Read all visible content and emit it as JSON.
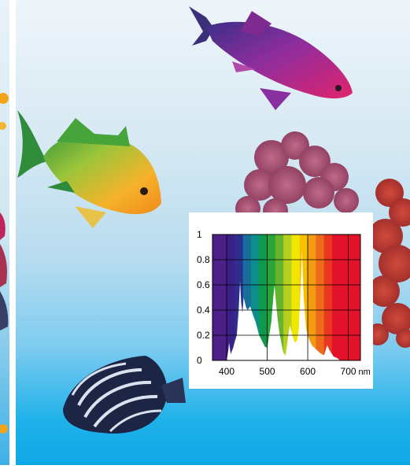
{
  "chart_data": {
    "type": "area",
    "title": "",
    "xlabel": "",
    "ylabel": "",
    "x_unit": "nm",
    "xlim": [
      365,
      730
    ],
    "ylim": [
      0,
      1
    ],
    "x_ticks": [
      400,
      500,
      600,
      700
    ],
    "x_tick_labels": [
      "400",
      "500",
      "600",
      "700"
    ],
    "y_ticks": [
      0,
      0.2,
      0.4,
      0.6,
      0.8,
      1
    ],
    "y_tick_labels": [
      "0",
      "0.2",
      "0.4",
      "0.6",
      "0.8",
      "1"
    ],
    "grid": true,
    "fill_color": "#ffffff",
    "spectrum_bands": [
      {
        "from": 365,
        "to": 400,
        "color": "#4b1f86"
      },
      {
        "from": 400,
        "to": 420,
        "color": "#3a2187"
      },
      {
        "from": 420,
        "to": 440,
        "color": "#2d2f8e"
      },
      {
        "from": 440,
        "to": 460,
        "color": "#176e9a"
      },
      {
        "from": 460,
        "to": 480,
        "color": "#0e8d8a"
      },
      {
        "from": 480,
        "to": 500,
        "color": "#0e9a4a"
      },
      {
        "from": 500,
        "to": 520,
        "color": "#2aa638"
      },
      {
        "from": 520,
        "to": 540,
        "color": "#67b52e"
      },
      {
        "from": 540,
        "to": 560,
        "color": "#b7cf1e"
      },
      {
        "from": 560,
        "to": 580,
        "color": "#f1e600"
      },
      {
        "from": 580,
        "to": 600,
        "color": "#f9c000"
      },
      {
        "from": 600,
        "to": 620,
        "color": "#f39c12"
      },
      {
        "from": 620,
        "to": 640,
        "color": "#ee6a1b"
      },
      {
        "from": 640,
        "to": 660,
        "color": "#e8381f"
      },
      {
        "from": 660,
        "to": 730,
        "color": "#e2122a"
      }
    ],
    "series": [
      {
        "x": [
          365,
          390,
          400,
          404,
          406,
          410,
          416,
          420,
          425,
          430,
          433,
          436,
          439,
          442,
          445,
          448,
          452,
          458,
          465,
          472,
          480,
          488,
          494,
          500,
          505,
          510,
          515,
          518,
          522,
          526,
          530,
          535,
          540,
          545,
          548,
          552,
          556,
          562,
          568,
          574,
          578,
          582,
          586,
          590,
          596,
          602,
          610,
          620,
          630,
          640,
          648,
          654,
          660,
          664,
          672,
          680,
          700,
          730
        ],
        "y": [
          0,
          0,
          0,
          0.08,
          0.14,
          0.05,
          0.1,
          0.15,
          0.2,
          0.42,
          0.63,
          0.45,
          0.38,
          0.5,
          0.46,
          0.42,
          0.4,
          0.43,
          0.36,
          0.3,
          0.2,
          0.15,
          0.11,
          0.1,
          0.2,
          0.3,
          0.5,
          0.6,
          0.45,
          0.32,
          0.22,
          0.14,
          0.06,
          0.04,
          0.1,
          0.2,
          0.28,
          0.2,
          0.14,
          0.16,
          0.25,
          0.55,
          0.88,
          0.5,
          0.25,
          0.18,
          0.12,
          0.09,
          0.06,
          0.04,
          0.12,
          0.08,
          0.05,
          0.03,
          0.02,
          0,
          0,
          0
        ]
      }
    ]
  }
}
